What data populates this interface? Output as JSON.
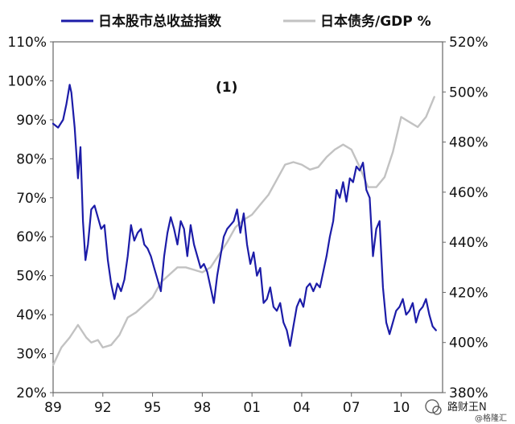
{
  "chart_data": {
    "type": "line",
    "annotation": "(1)",
    "legend_position": "top",
    "grid": false,
    "x_ticks": [
      "89",
      "92",
      "95",
      "98",
      "01",
      "04",
      "07",
      "10"
    ],
    "x_range": [
      1989,
      2012.5
    ],
    "left_axis": {
      "ylim": [
        20,
        110
      ],
      "ticks": [
        "20%",
        "30%",
        "40%",
        "50%",
        "60%",
        "70%",
        "80%",
        "90%",
        "100%",
        "110%"
      ]
    },
    "right_axis": {
      "ylim": [
        380,
        520
      ],
      "ticks": [
        "380%",
        "400%",
        "420%",
        "440%",
        "460%",
        "480%",
        "500%",
        "520%"
      ]
    },
    "series": [
      {
        "name": "日本股市总收益指数",
        "axis": "left",
        "color": "#1c1ca8",
        "x": [
          1989.0,
          1989.3,
          1989.6,
          1989.8,
          1990.0,
          1990.1,
          1990.3,
          1990.5,
          1990.65,
          1990.8,
          1990.95,
          1991.1,
          1991.3,
          1991.5,
          1991.7,
          1991.9,
          1992.1,
          1992.3,
          1992.5,
          1992.7,
          1992.9,
          1993.1,
          1993.3,
          1993.5,
          1993.7,
          1993.9,
          1994.1,
          1994.3,
          1994.5,
          1994.7,
          1994.9,
          1995.1,
          1995.3,
          1995.5,
          1995.7,
          1995.9,
          1996.1,
          1996.3,
          1996.5,
          1996.7,
          1996.9,
          1997.1,
          1997.3,
          1997.5,
          1997.7,
          1997.9,
          1998.1,
          1998.3,
          1998.5,
          1998.7,
          1998.9,
          1999.1,
          1999.3,
          1999.5,
          1999.7,
          1999.9,
          2000.1,
          2000.3,
          2000.5,
          2000.7,
          2000.9,
          2001.1,
          2001.3,
          2001.5,
          2001.7,
          2001.9,
          2002.1,
          2002.3,
          2002.5,
          2002.7,
          2002.9,
          2003.1,
          2003.3,
          2003.5,
          2003.7,
          2003.9,
          2004.1,
          2004.3,
          2004.5,
          2004.7,
          2004.9,
          2005.1,
          2005.3,
          2005.5,
          2005.7,
          2005.9,
          2006.1,
          2006.3,
          2006.5,
          2006.7,
          2006.9,
          2007.1,
          2007.3,
          2007.5,
          2007.7,
          2007.9,
          2008.1,
          2008.3,
          2008.5,
          2008.7,
          2008.9,
          2009.1,
          2009.3,
          2009.5,
          2009.7,
          2009.9,
          2010.1,
          2010.3,
          2010.5,
          2010.7,
          2010.9,
          2011.1,
          2011.3,
          2011.5,
          2011.7,
          2011.9,
          2012.1
        ],
        "values": [
          89,
          88,
          90,
          94,
          99,
          97,
          88,
          75,
          83,
          64,
          54,
          58,
          67,
          68,
          65,
          62,
          63,
          54,
          48,
          44,
          48,
          46,
          49,
          55,
          63,
          59,
          61,
          62,
          58,
          57,
          55,
          52,
          49,
          46,
          55,
          61,
          65,
          62,
          58,
          64,
          62,
          55,
          63,
          58,
          55,
          52,
          53,
          51,
          47,
          43,
          50,
          55,
          60,
          62,
          63,
          64,
          67,
          61,
          66,
          58,
          53,
          56,
          50,
          52,
          43,
          44,
          47,
          42,
          41,
          43,
          38,
          36,
          32,
          37,
          42,
          44,
          42,
          47,
          48,
          46,
          48,
          47,
          51,
          55,
          60,
          64,
          72,
          70,
          74,
          69,
          75,
          74,
          78,
          77,
          79,
          72,
          70,
          55,
          62,
          64,
          47,
          38,
          35,
          38,
          41,
          42,
          44,
          40,
          41,
          43,
          38,
          41,
          42,
          44,
          40,
          37,
          36
        ]
      },
      {
        "name": "日本债务/GDP %",
        "axis": "right",
        "color": "#c2c2c2",
        "x": [
          1989.0,
          1989.5,
          1990.0,
          1990.5,
          1991.0,
          1991.3,
          1991.7,
          1992.0,
          1992.5,
          1993.0,
          1993.5,
          1994.0,
          1994.5,
          1995.0,
          1995.5,
          1996.0,
          1996.5,
          1997.0,
          1997.5,
          1998.0,
          1998.5,
          1999.0,
          1999.5,
          2000.0,
          2000.5,
          2001.0,
          2001.5,
          2002.0,
          2002.5,
          2003.0,
          2003.5,
          2004.0,
          2004.5,
          2005.0,
          2005.5,
          2006.0,
          2006.5,
          2007.0,
          2007.5,
          2008.0,
          2008.5,
          2009.0,
          2009.5,
          2010.0,
          2010.5,
          2011.0,
          2011.5,
          2012.0
        ],
        "values": [
          391,
          398,
          402,
          407,
          402,
          400,
          401,
          398,
          399,
          403,
          410,
          412,
          415,
          418,
          424,
          427,
          430,
          430,
          429,
          428,
          430,
          435,
          440,
          446,
          449,
          451,
          455,
          459,
          465,
          471,
          472,
          471,
          469,
          470,
          474,
          477,
          479,
          477,
          470,
          462,
          462,
          466,
          476,
          490,
          488,
          486,
          490,
          498
        ]
      }
    ]
  },
  "watermark": {
    "name": "路财王N",
    "credit": "@格隆汇"
  }
}
